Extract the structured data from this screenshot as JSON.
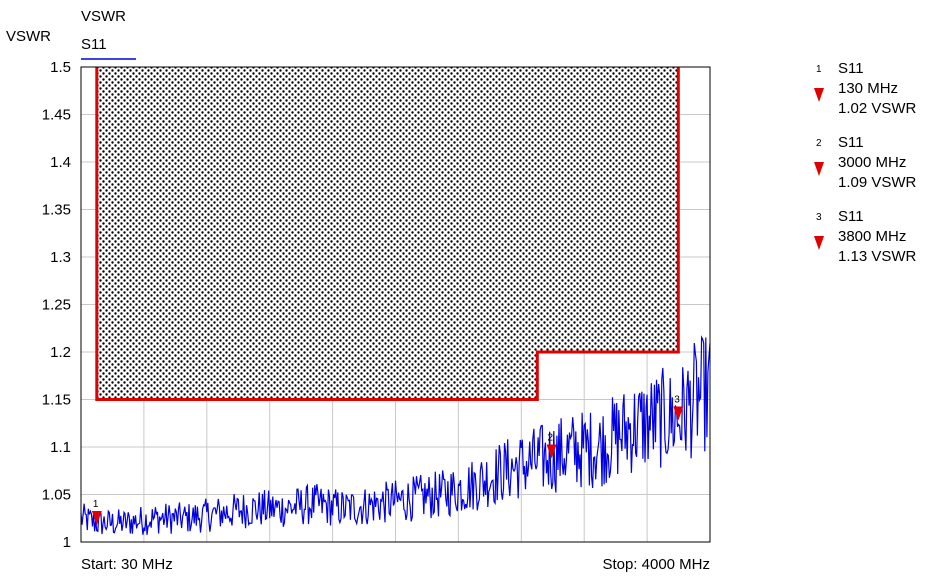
{
  "chart_data": {
    "type": "line",
    "title_line1": "VSWR",
    "ylabel": "VSWR",
    "series": [
      {
        "name": "S11",
        "color": "#0000e0",
        "x": [
          30,
          130,
          300,
          500,
          700,
          900,
          1100,
          1300,
          1500,
          1700,
          1900,
          2100,
          2300,
          2500,
          2700,
          2900,
          3000,
          3100,
          3300,
          3500,
          3700,
          3800,
          3900,
          4000
        ],
        "values": [
          1.025,
          1.02,
          1.02,
          1.025,
          1.025,
          1.03,
          1.035,
          1.035,
          1.04,
          1.035,
          1.04,
          1.045,
          1.05,
          1.06,
          1.075,
          1.085,
          1.09,
          1.095,
          1.1,
          1.12,
          1.13,
          1.13,
          1.15,
          1.16
        ]
      }
    ],
    "ylim": [
      1,
      1.5
    ],
    "yticks": [
      "1.5",
      "1.45",
      "1.4",
      "1.35",
      "1.3",
      "1.25",
      "1.2",
      "1.15",
      "1.1",
      "1.05",
      "1"
    ],
    "xlim": [
      30,
      4000
    ],
    "start_label": "Start: 30 MHz",
    "stop_label": "Stop: 4000 MHz",
    "grid": true,
    "limit_line": {
      "color": "#e00000",
      "points": [
        [
          130,
          1.5
        ],
        [
          130,
          1.15
        ],
        [
          2910,
          1.15
        ],
        [
          2910,
          1.2
        ],
        [
          3800,
          1.2
        ],
        [
          3800,
          1.5
        ]
      ]
    },
    "markers": [
      {
        "id": "1",
        "trace": "S11",
        "x": 130,
        "freq": "130 MHz",
        "y": 1.02,
        "value": "1.02 VSWR"
      },
      {
        "id": "2",
        "trace": "S11",
        "x": 3000,
        "freq": "3000 MHz",
        "y": 1.09,
        "value": "1.09 VSWR"
      },
      {
        "id": "3",
        "trace": "S11",
        "x": 3800,
        "freq": "3800 MHz",
        "y": 1.13,
        "value": "1.13 VSWR"
      }
    ],
    "marker_color": "#e00000",
    "legend_position": "right"
  }
}
